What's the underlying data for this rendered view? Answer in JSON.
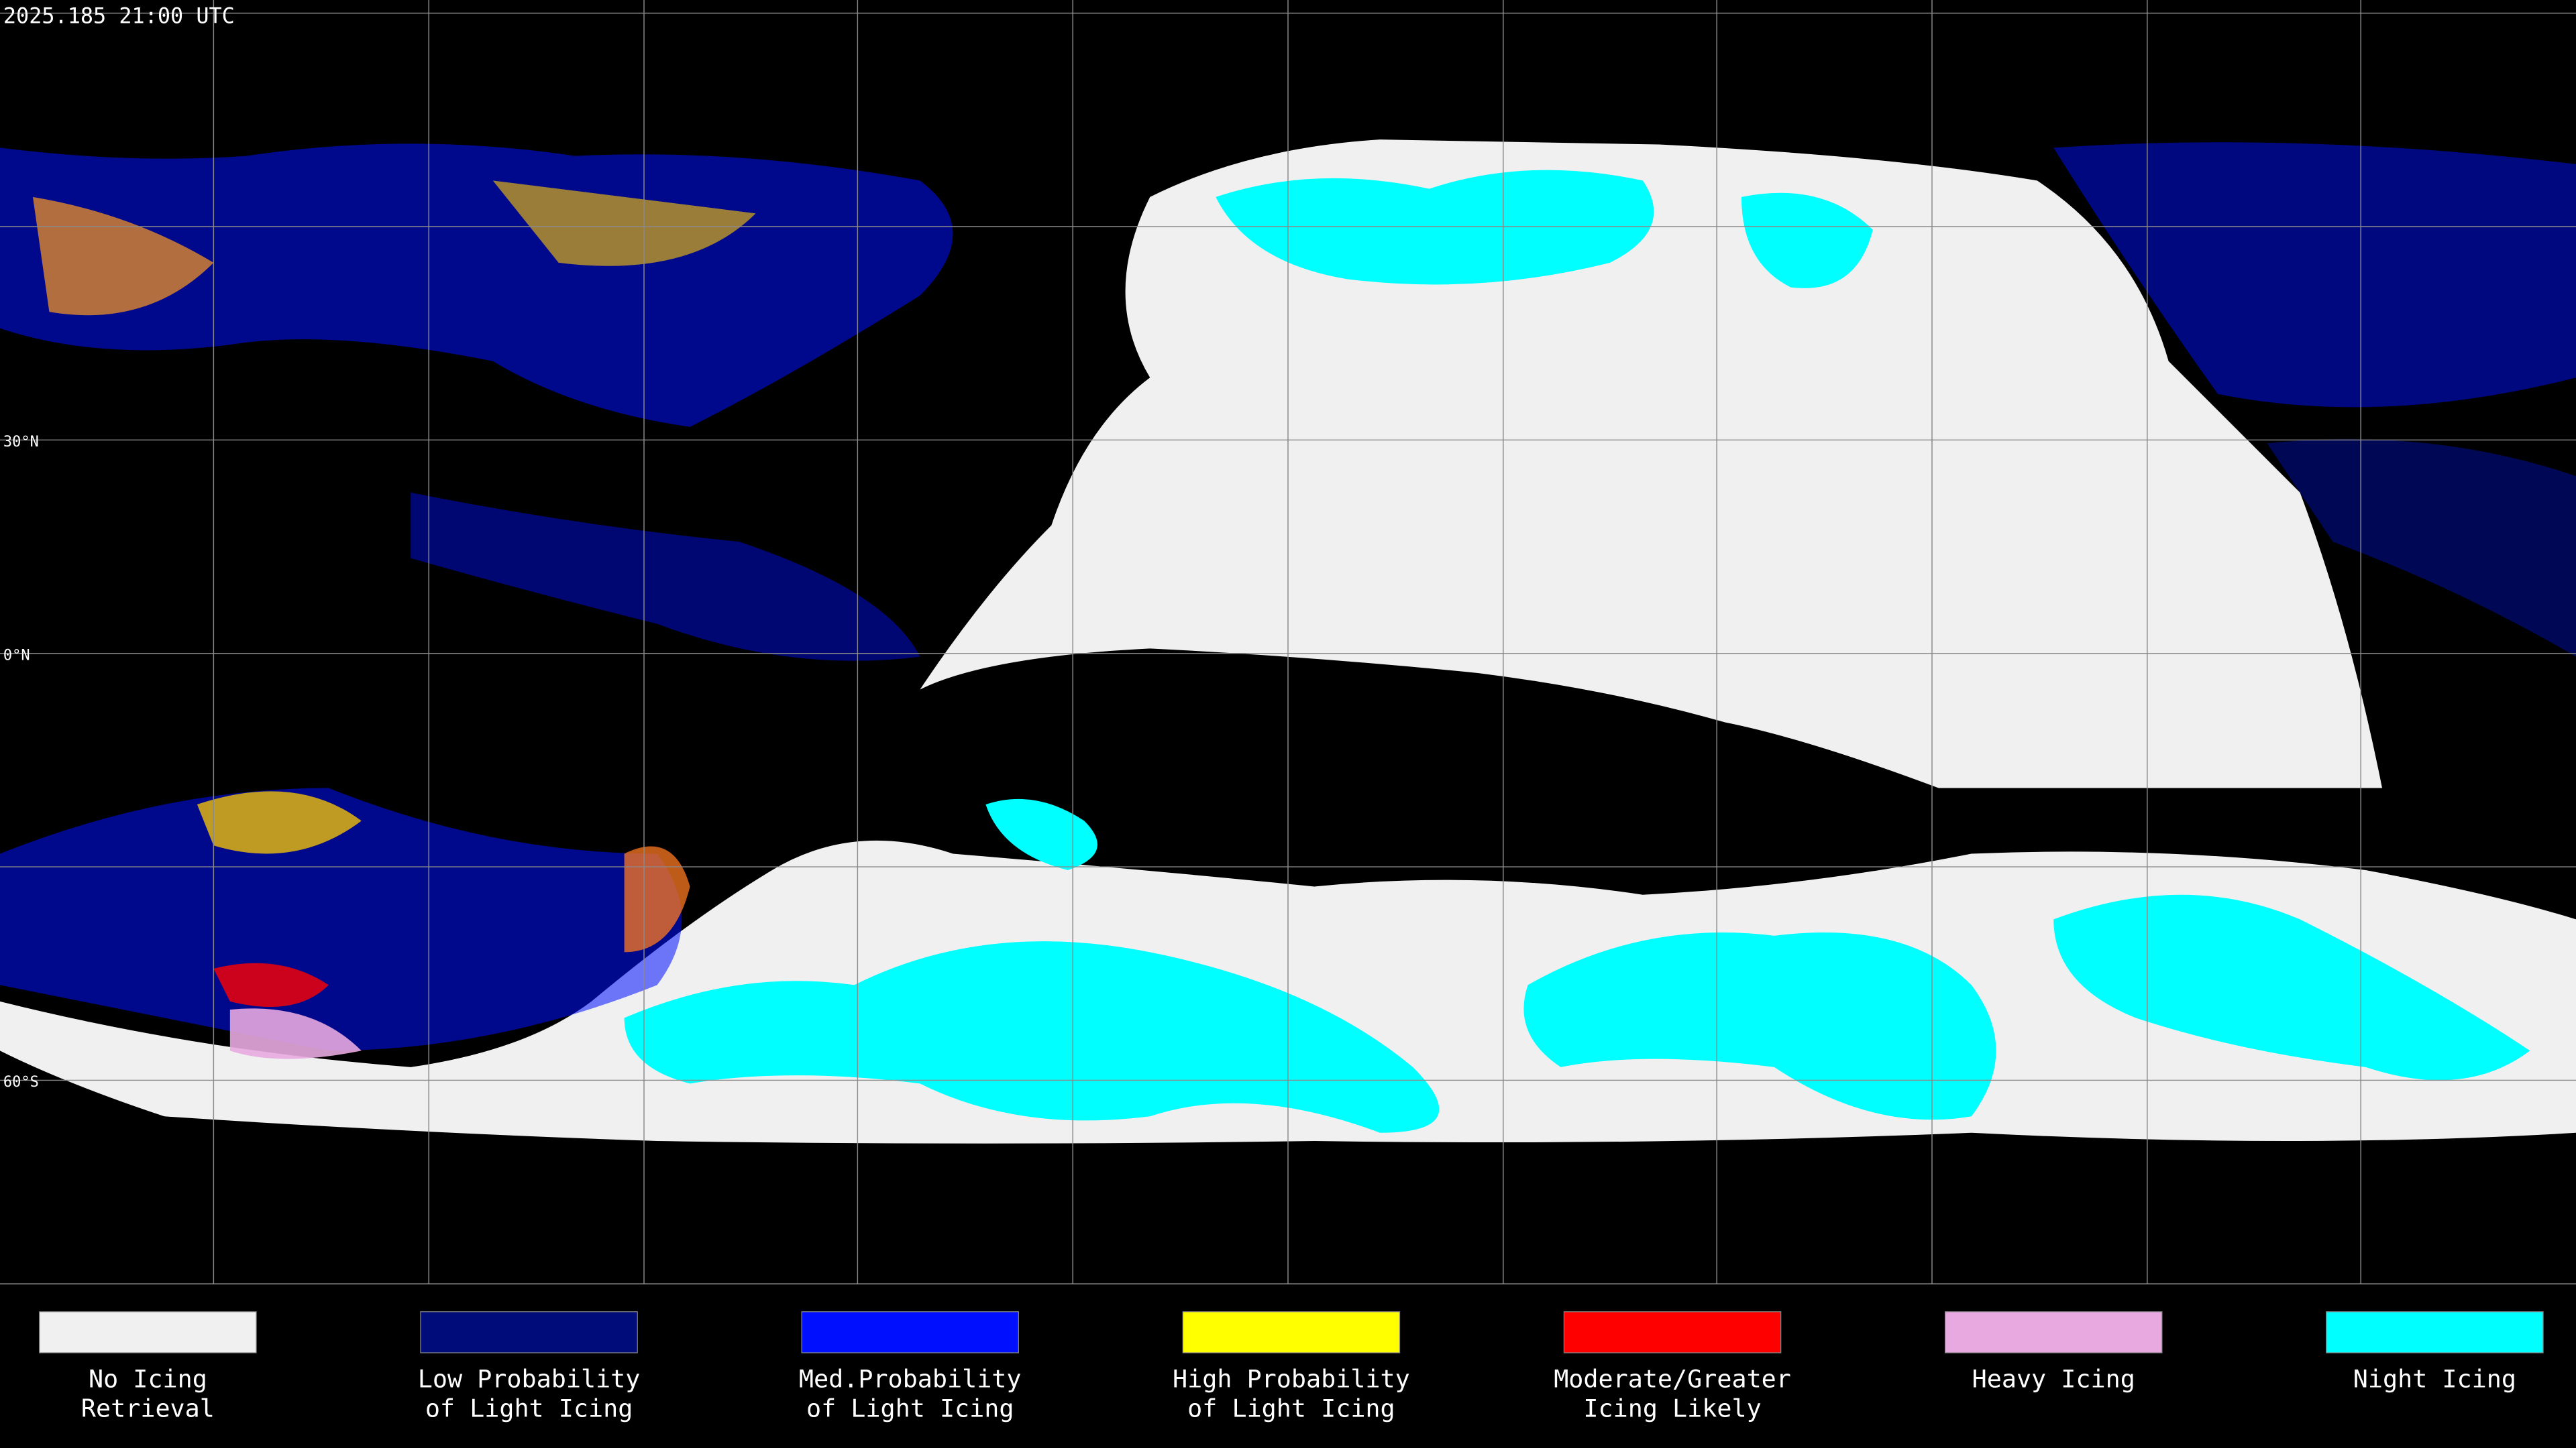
{
  "timestamp": "2025.185 21:00 UTC",
  "latitude_labels": [
    "30°N",
    "0°N",
    "60°S"
  ],
  "legend": [
    {
      "lines": [
        "No Icing",
        "Retrieval"
      ],
      "color": "#f0f0f0"
    },
    {
      "lines": [
        "Low Probability",
        "of Light Icing"
      ],
      "color": "#000c7a"
    },
    {
      "lines": [
        "Med.Probability",
        "of Light Icing"
      ],
      "color": "#0010ff"
    },
    {
      "lines": [
        "High Probability",
        "of Light Icing"
      ],
      "color": "#ffff00"
    },
    {
      "lines": [
        "Moderate/Greater",
        "Icing Likely"
      ],
      "color": "#ff0000"
    },
    {
      "lines": [
        "Heavy Icing"
      ],
      "color": "#e8a8e0"
    },
    {
      "lines": [
        "Night Icing"
      ],
      "color": "#00ffff"
    }
  ]
}
